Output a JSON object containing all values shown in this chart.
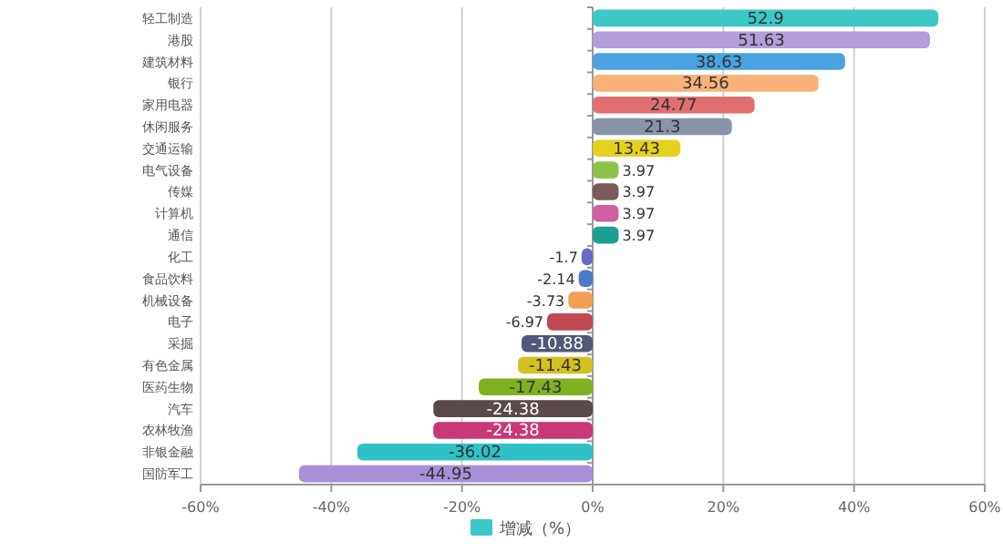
{
  "chart_data": {
    "type": "bar",
    "orientation": "horizontal",
    "categories": [
      "轻工制造",
      "港股",
      "建筑材料",
      "银行",
      "家用电器",
      "休闲服务",
      "交通运输",
      "电气设备",
      "传媒",
      "计算机",
      "通信",
      "化工",
      "食品饮料",
      "机械设备",
      "电子",
      "采掘",
      "有色金属",
      "医药生物",
      "汽车",
      "农林牧渔",
      "非银金融",
      "国防军工"
    ],
    "series": [
      {
        "name": "增减（%）",
        "color": "#3cc8c8",
        "values": [
          52.9,
          51.63,
          38.63,
          34.56,
          24.77,
          21.3,
          13.43,
          3.97,
          3.97,
          3.97,
          3.97,
          -1.7,
          -2.14,
          -3.73,
          -6.97,
          -10.88,
          -11.43,
          -17.43,
          -24.38,
          -24.38,
          -36.02,
          -44.95
        ],
        "colors": [
          "#3cc8c8",
          "#b39ddb",
          "#4aa3df",
          "#f7b27a",
          "#e07070",
          "#8a94a8",
          "#e6d21e",
          "#8bc34a",
          "#7a5a5a",
          "#d060a0",
          "#1aa090",
          "#6a6ac8",
          "#4a7ac8",
          "#f0a050",
          "#c04850",
          "#505878",
          "#d4c020",
          "#80b020",
          "#5a4a4a",
          "#c83878",
          "#30c0c8",
          "#a890d8"
        ]
      }
    ],
    "xlim": [
      -60,
      60
    ],
    "xticks": [
      {
        "value": -60,
        "label": "-60%"
      },
      {
        "value": -40,
        "label": "-40%"
      },
      {
        "value": -20,
        "label": "-20%"
      },
      {
        "value": 0,
        "label": "0%"
      },
      {
        "value": 20,
        "label": "20%"
      },
      {
        "value": 40,
        "label": "40%"
      },
      {
        "value": 60,
        "label": "60%"
      }
    ],
    "grid": "x",
    "legend": "bottom",
    "data_labels": true
  }
}
